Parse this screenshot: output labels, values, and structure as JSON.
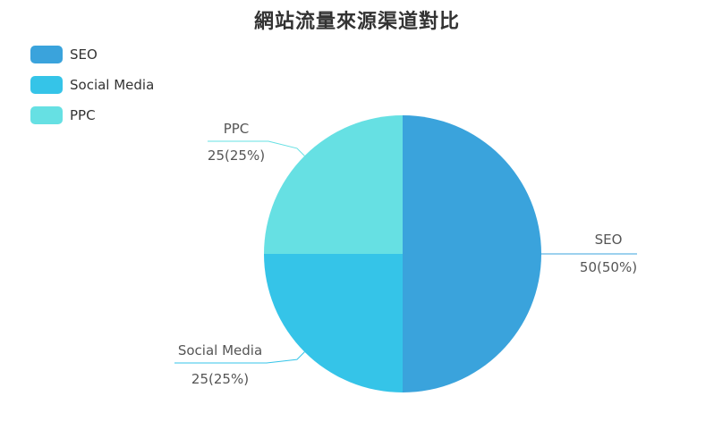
{
  "chart_data": {
    "type": "pie",
    "title": "網站流量來源渠道對比",
    "categories": [
      "SEO",
      "Social Media",
      "PPC"
    ],
    "values": [
      50,
      25,
      25
    ],
    "percent_labels": [
      "50(50%)",
      "25(25%)",
      "25(25%)"
    ],
    "colors": [
      "#3aa3dc",
      "#35c4e8",
      "#66e0e3"
    ],
    "legend_placement": "top-left"
  }
}
